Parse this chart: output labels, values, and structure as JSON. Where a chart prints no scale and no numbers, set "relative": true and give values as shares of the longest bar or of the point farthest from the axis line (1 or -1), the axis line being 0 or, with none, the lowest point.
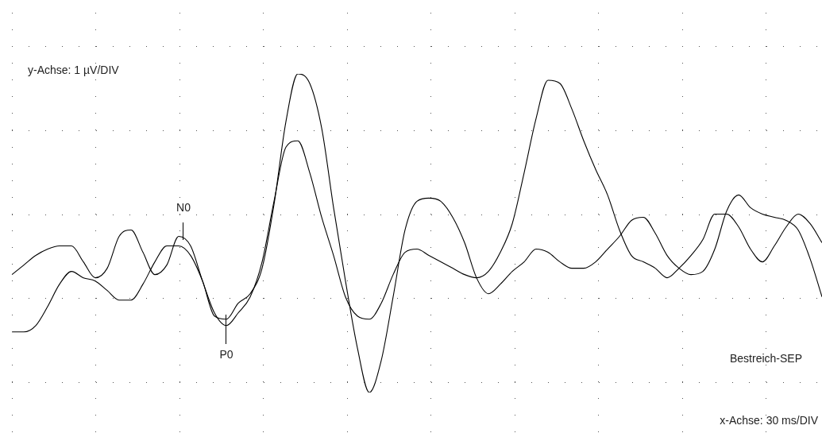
{
  "chart_data": {
    "type": "line",
    "relative": true,
    "legend": false,
    "marker": "none",
    "line_style": "solid",
    "categories": [
      null,
      null,
      null,
      null,
      null,
      null,
      null,
      null,
      null,
      null,
      null,
      null,
      null,
      null,
      null,
      null,
      null,
      null,
      null,
      null,
      null,
      null,
      null,
      null,
      null,
      null,
      null,
      null,
      null,
      null,
      null,
      null,
      null,
      null,
      null,
      null,
      null,
      null,
      null,
      null,
      null,
      null,
      null,
      null,
      null,
      null,
      null,
      null,
      null,
      null,
      null,
      null,
      null,
      null,
      null,
      null,
      null,
      null,
      null,
      null,
      null,
      null,
      null,
      null,
      null,
      null,
      null,
      null,
      null
    ],
    "series": [
      {
        "color": "#000000",
        "values": [
          0.19,
          0.19,
          0.21,
          0.27,
          0.34,
          0.38,
          0.36,
          0.35,
          0.32,
          0.29,
          0.29,
          0.34,
          0.41,
          0.46,
          0.46,
          0.43,
          0.35,
          0.24,
          0.23,
          0.28,
          0.31,
          0.39,
          0.59,
          0.85,
          1,
          0.97,
          0.83,
          0.58,
          0.35,
          0.14,
          0,
          0.1,
          0.3,
          0.51,
          0.6,
          0.61,
          0.6,
          0.55,
          0.47,
          0.36,
          0.31,
          0.34,
          0.38,
          0.41,
          0.45,
          0.44,
          0.41,
          0.39,
          0.39,
          0.41,
          0.45,
          0.49,
          0.54,
          0.55,
          0.5,
          0.43,
          0.39,
          0.37,
          0.38,
          0.45,
          0.57,
          0.62,
          0.58,
          0.56,
          0.55,
          0.54,
          0.51,
          0.42,
          0.3
        ]
      },
      {
        "color": "#000000",
        "values": [
          0.37,
          0.4,
          0.43,
          0.45,
          0.46,
          0.46,
          0.41,
          0.36,
          0.39,
          0.49,
          0.51,
          0.44,
          0.37,
          0.4,
          0.49,
          0.46,
          0.35,
          0.25,
          0.21,
          0.25,
          0.3,
          0.41,
          0.6,
          0.77,
          0.79,
          0.69,
          0.55,
          0.43,
          0.3,
          0.24,
          0.23,
          0.28,
          0.37,
          0.44,
          0.45,
          0.43,
          0.41,
          0.39,
          0.37,
          0.36,
          0.38,
          0.44,
          0.53,
          0.69,
          0.86,
          0.98,
          0.97,
          0.89,
          0.79,
          0.7,
          0.62,
          0.51,
          0.43,
          0.41,
          0.39,
          0.36,
          0.39,
          0.43,
          0.48,
          0.56,
          0.56,
          0.52,
          0.45,
          0.41,
          0.46,
          0.52,
          0.56,
          0.53,
          0.47
        ]
      }
    ],
    "annotations": [
      "y-Achse: 1 µV/DIV",
      "N0",
      "P0",
      "Bestreich-SEP",
      "x-Achse: 30 ms/DIV"
    ]
  }
}
